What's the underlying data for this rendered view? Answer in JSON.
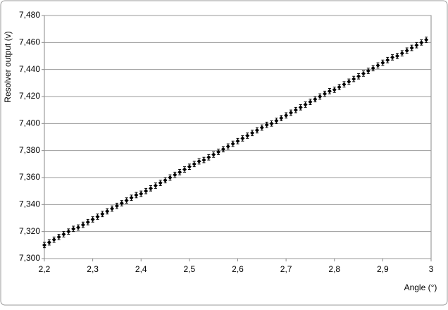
{
  "chart_data": {
    "type": "scatter",
    "x_label": "Angle (°)",
    "y_label": "Resolver output (v)",
    "x": [
      2.2,
      2.21,
      2.22,
      2.23,
      2.24,
      2.25,
      2.26,
      2.27,
      2.28,
      2.29,
      2.3,
      2.31,
      2.32,
      2.33,
      2.34,
      2.35,
      2.36,
      2.37,
      2.38,
      2.39,
      2.4,
      2.41,
      2.42,
      2.43,
      2.44,
      2.45,
      2.46,
      2.47,
      2.48,
      2.49,
      2.5,
      2.51,
      2.52,
      2.53,
      2.54,
      2.55,
      2.56,
      2.57,
      2.58,
      2.59,
      2.6,
      2.61,
      2.62,
      2.63,
      2.64,
      2.65,
      2.66,
      2.67,
      2.68,
      2.69,
      2.7,
      2.71,
      2.72,
      2.73,
      2.74,
      2.75,
      2.76,
      2.77,
      2.78,
      2.79,
      2.8,
      2.81,
      2.82,
      2.83,
      2.84,
      2.85,
      2.86,
      2.87,
      2.88,
      2.89,
      2.9,
      2.91,
      2.92,
      2.93,
      2.94,
      2.95,
      2.96,
      2.97,
      2.98,
      2.99
    ],
    "values": [
      7.31,
      7.312,
      7.314,
      7.316,
      7.318,
      7.32,
      7.322,
      7.323,
      7.325,
      7.327,
      7.329,
      7.331,
      7.333,
      7.335,
      7.337,
      7.339,
      7.341,
      7.343,
      7.345,
      7.347,
      7.348,
      7.35,
      7.352,
      7.354,
      7.356,
      7.358,
      7.36,
      7.362,
      7.364,
      7.366,
      7.368,
      7.37,
      7.372,
      7.373,
      7.375,
      7.377,
      7.379,
      7.381,
      7.383,
      7.385,
      7.387,
      7.389,
      7.391,
      7.393,
      7.395,
      7.397,
      7.399,
      7.4,
      7.402,
      7.404,
      7.406,
      7.408,
      7.41,
      7.412,
      7.414,
      7.416,
      7.418,
      7.42,
      7.422,
      7.424,
      7.425,
      7.427,
      7.429,
      7.431,
      7.433,
      7.435,
      7.437,
      7.439,
      7.441,
      7.443,
      7.445,
      7.447,
      7.449,
      7.45,
      7.452,
      7.454,
      7.456,
      7.458,
      7.46,
      7.462
    ],
    "y_error": 0.002,
    "color": "#000000",
    "xlim": [
      2.2,
      3
    ],
    "xticks": [
      {
        "value": 2.2,
        "label": "2,2"
      },
      {
        "value": 2.3,
        "label": "2,3"
      },
      {
        "value": 2.4,
        "label": "2,4"
      },
      {
        "value": 2.5,
        "label": "2,5"
      },
      {
        "value": 2.6,
        "label": "2,6"
      },
      {
        "value": 2.7,
        "label": "2,7"
      },
      {
        "value": 2.8,
        "label": "2,8"
      },
      {
        "value": 2.9,
        "label": "2,9"
      },
      3
    ],
    "ylim": [
      7.3,
      7.48
    ],
    "yticks": [
      {
        "value": 7.3,
        "label": "7,300"
      },
      {
        "value": 7.32,
        "label": "7,320"
      },
      {
        "value": 7.34,
        "label": "7,340"
      },
      {
        "value": 7.36,
        "label": "7,360"
      },
      {
        "value": 7.38,
        "label": "7,380"
      },
      {
        "value": 7.4,
        "label": "7,400"
      },
      {
        "value": 7.42,
        "label": "7,420"
      },
      {
        "value": 7.44,
        "label": "7,440"
      },
      {
        "value": 7.46,
        "label": "7,460"
      },
      {
        "value": 7.48,
        "label": "7,480"
      }
    ],
    "grid": true
  }
}
